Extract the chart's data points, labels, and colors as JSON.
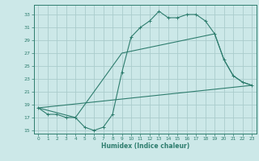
{
  "xlabel": "Humidex (Indice chaleur)",
  "bg_color": "#cce8e8",
  "grid_color": "#aacccc",
  "line_color": "#2e7d6e",
  "xlim": [
    -0.5,
    23.5
  ],
  "ylim": [
    14.5,
    34.5
  ],
  "yticks": [
    15,
    17,
    19,
    21,
    23,
    25,
    27,
    29,
    31,
    33
  ],
  "xticks": [
    0,
    1,
    2,
    3,
    4,
    5,
    6,
    7,
    8,
    9,
    10,
    11,
    12,
    13,
    14,
    15,
    16,
    17,
    18,
    19,
    20,
    21,
    22,
    23
  ],
  "line1_x": [
    0,
    1,
    2,
    3,
    4,
    5,
    6,
    7,
    8,
    9,
    10,
    11,
    12,
    13,
    14,
    15,
    16,
    17,
    18,
    19,
    20,
    21,
    22,
    23
  ],
  "line1_y": [
    18.5,
    17.5,
    17.5,
    17.0,
    17.0,
    15.5,
    15.0,
    15.5,
    17.5,
    24.0,
    29.5,
    31.0,
    32.0,
    33.5,
    32.5,
    32.5,
    33.0,
    33.0,
    32.0,
    30.0,
    26.0,
    23.5,
    22.5,
    22.0
  ],
  "line2_x": [
    0,
    4,
    9,
    19,
    20,
    21,
    22,
    23
  ],
  "line2_y": [
    18.5,
    17.0,
    27.0,
    30.0,
    26.0,
    23.5,
    22.5,
    22.0
  ],
  "line3_x": [
    0,
    23
  ],
  "line3_y": [
    18.5,
    22.0
  ]
}
